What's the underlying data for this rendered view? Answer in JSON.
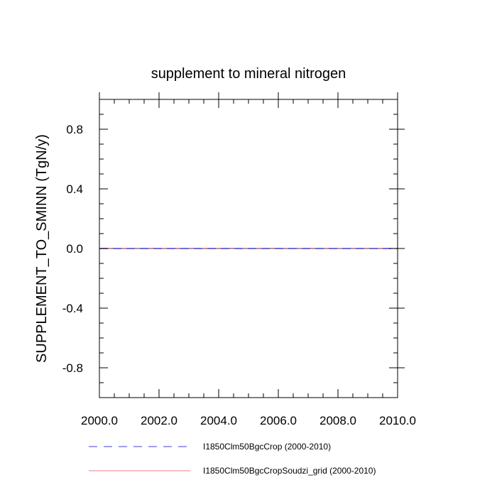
{
  "chart_data": {
    "type": "line",
    "title": "supplement to mineral nitrogen",
    "xlabel": "",
    "ylabel": "SUPPLEMENT_TO_SMINN  (TgN/y)",
    "xlim": [
      2000.0,
      2010.0
    ],
    "ylim": [
      -1.0,
      1.0
    ],
    "x_ticks": [
      2000.0,
      2002.0,
      2004.0,
      2006.0,
      2008.0,
      2010.0
    ],
    "x_tick_labels": [
      "2000.0",
      "2002.0",
      "2004.0",
      "2006.0",
      "2008.0",
      "2010.0"
    ],
    "y_ticks": [
      -0.8,
      -0.4,
      0.0,
      0.4,
      0.8
    ],
    "y_tick_labels": [
      "-0.8",
      "-0.4",
      "0.0",
      "0.4",
      "0.8"
    ],
    "grid": false,
    "legend_position": "bottom",
    "series": [
      {
        "name": "I1850Clm50BgcCrop (2000-2010)",
        "color": "#3f3fd8",
        "style": "dashed",
        "x": [
          2000,
          2001,
          2002,
          2003,
          2004,
          2005,
          2006,
          2007,
          2008,
          2009,
          2010
        ],
        "y": [
          0,
          0,
          0,
          0,
          0,
          0,
          0,
          0,
          0,
          0,
          0
        ]
      },
      {
        "name": "I1850Clm50BgcCropSoudzi_grid (2000-2010)",
        "color": "#f08080",
        "style": "solid",
        "x": [
          2000,
          2001,
          2002,
          2003,
          2004,
          2005,
          2006,
          2007,
          2008,
          2009,
          2010
        ],
        "y": [
          0,
          0,
          0,
          0,
          0,
          0,
          0,
          0,
          0,
          0,
          0
        ]
      }
    ]
  }
}
